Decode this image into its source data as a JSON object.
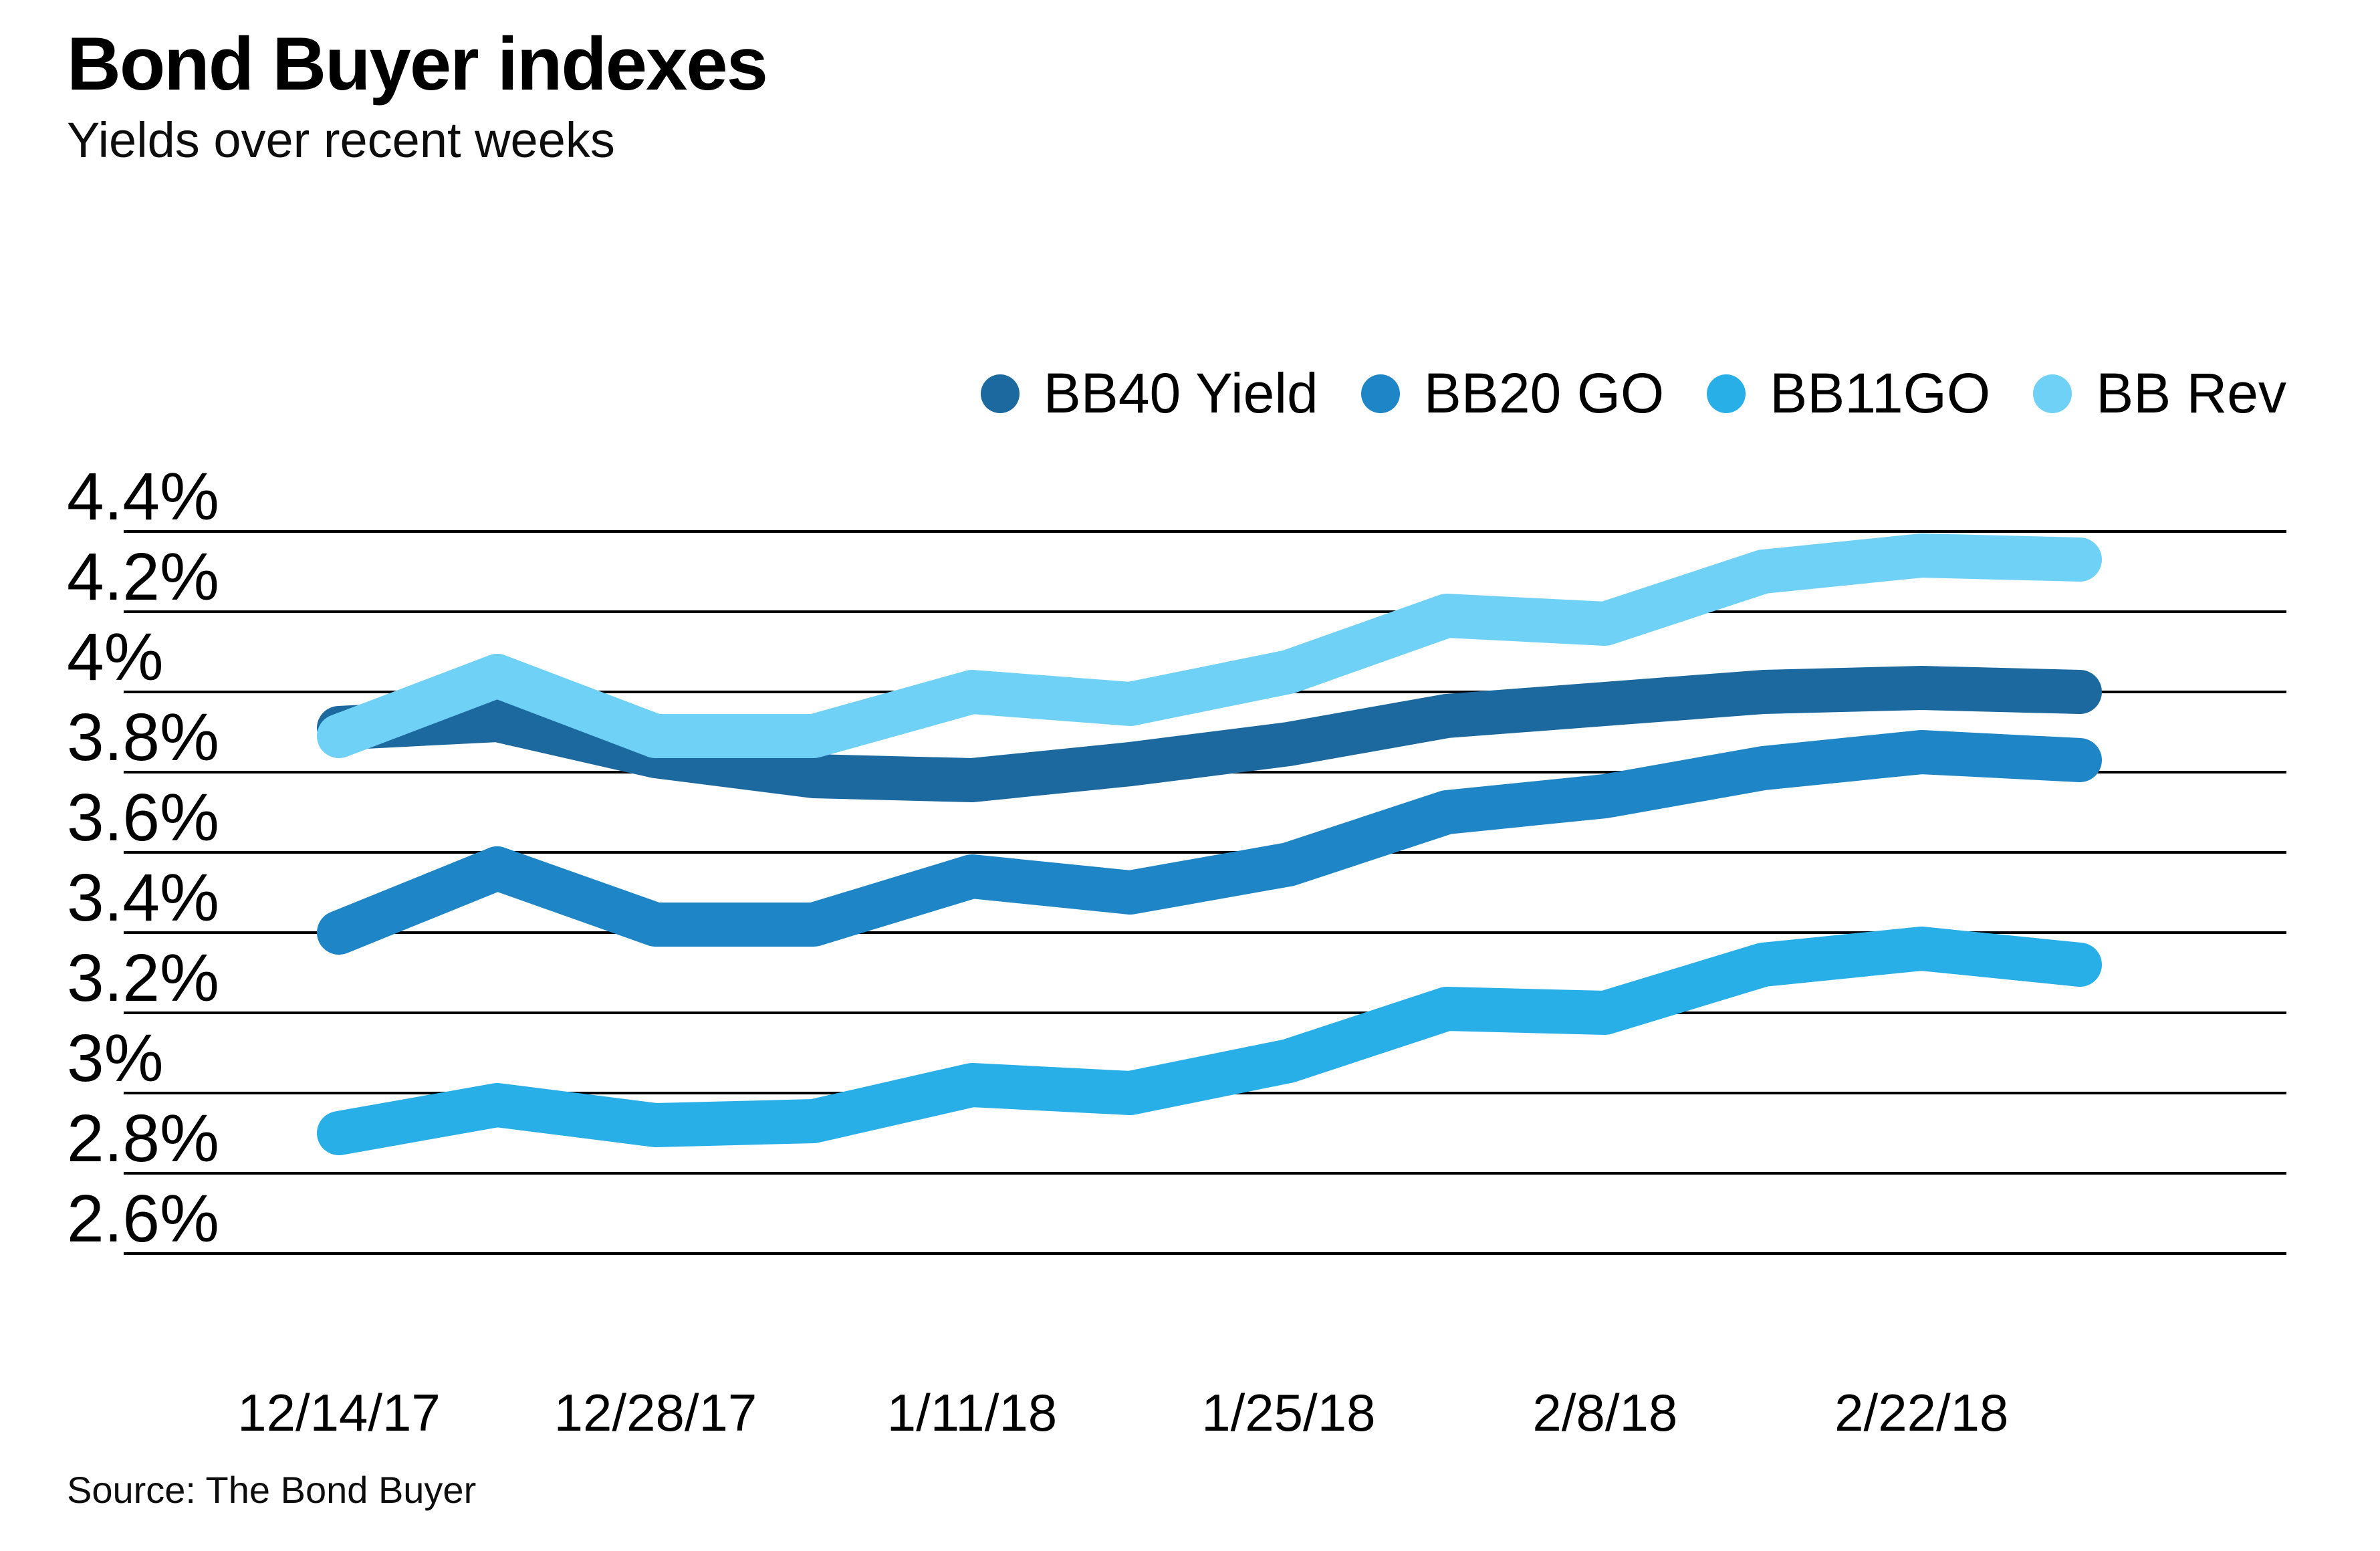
{
  "title": "Bond Buyer indexes",
  "subtitle": "Yields over recent weeks",
  "source": "Source: The Bond Buyer",
  "colors": {
    "bb40": "#1c69a0",
    "bb20": "#1e86c6",
    "bb11": "#28afe8",
    "bbrev": "#70d1f6",
    "gridline": "#000000",
    "text": "#000000"
  },
  "chart_data": {
    "type": "line",
    "title": "Bond Buyer indexes",
    "subtitle": "Yields over recent weeks",
    "x": [
      "12/14/17",
      "12/21/17",
      "12/28/17",
      "1/4/18",
      "1/11/18",
      "1/18/18",
      "1/25/18",
      "2/1/18",
      "2/8/18",
      "2/15/18",
      "2/22/18",
      "3/1/18"
    ],
    "x_tick_labels": [
      "12/14/17",
      "12/28/17",
      "1/11/18",
      "1/25/18",
      "2/8/18",
      "2/22/18"
    ],
    "x_tick_indices": [
      0,
      2,
      4,
      6,
      8,
      10
    ],
    "series": [
      {
        "name": "BB40 Yield",
        "color_key": "bb40",
        "values": [
          3.91,
          3.93,
          3.84,
          3.79,
          3.78,
          3.82,
          3.87,
          3.94,
          3.97,
          4.0,
          4.01,
          4.0
        ]
      },
      {
        "name": "BB20 GO",
        "color_key": "bb20",
        "values": [
          3.4,
          3.56,
          3.42,
          3.42,
          3.54,
          3.5,
          3.57,
          3.7,
          3.74,
          3.81,
          3.85,
          3.83
        ]
      },
      {
        "name": "BB11GO",
        "color_key": "bb11",
        "values": [
          2.9,
          2.97,
          2.92,
          2.93,
          3.02,
          3.0,
          3.08,
          3.21,
          3.2,
          3.32,
          3.36,
          3.32
        ]
      },
      {
        "name": "BB Rev",
        "color_key": "bbrev",
        "values": [
          3.89,
          4.04,
          3.89,
          3.89,
          4.0,
          3.97,
          4.05,
          4.19,
          4.17,
          4.3,
          4.34,
          4.33
        ]
      }
    ],
    "yticks": [
      {
        "value": 4.4,
        "label": "4.4%"
      },
      {
        "value": 4.2,
        "label": "4.2%"
      },
      {
        "value": 4.0,
        "label": "4%"
      },
      {
        "value": 3.8,
        "label": "3.8%"
      },
      {
        "value": 3.6,
        "label": "3.6%"
      },
      {
        "value": 3.4,
        "label": "3.4%"
      },
      {
        "value": 3.2,
        "label": "3.2%"
      },
      {
        "value": 3.0,
        "label": "3%"
      },
      {
        "value": 2.8,
        "label": "2.8%"
      },
      {
        "value": 2.6,
        "label": "2.6%"
      }
    ],
    "ylim": [
      2.6,
      4.4
    ],
    "grid": "horizontal",
    "legend_position": "top-right",
    "unit": "%"
  }
}
